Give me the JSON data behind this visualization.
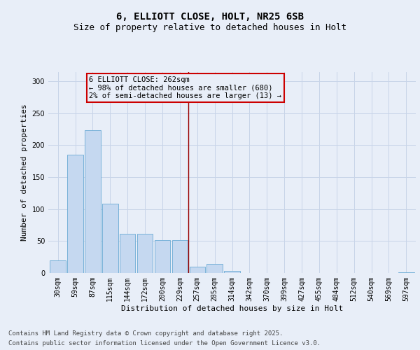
{
  "title1": "6, ELLIOTT CLOSE, HOLT, NR25 6SB",
  "title2": "Size of property relative to detached houses in Holt",
  "xlabel": "Distribution of detached houses by size in Holt",
  "ylabel": "Number of detached properties",
  "bar_labels": [
    "30sqm",
    "59sqm",
    "87sqm",
    "115sqm",
    "144sqm",
    "172sqm",
    "200sqm",
    "229sqm",
    "257sqm",
    "285sqm",
    "314sqm",
    "342sqm",
    "370sqm",
    "399sqm",
    "427sqm",
    "455sqm",
    "484sqm",
    "512sqm",
    "540sqm",
    "569sqm",
    "597sqm"
  ],
  "bar_values": [
    20,
    185,
    224,
    109,
    61,
    61,
    51,
    51,
    10,
    14,
    3,
    0,
    0,
    0,
    0,
    0,
    0,
    0,
    0,
    0,
    1
  ],
  "bar_color": "#c5d8f0",
  "bar_edge_color": "#6aaad4",
  "grid_color": "#c8d4e8",
  "background_color": "#e8eef8",
  "vline_x_index": 8,
  "vline_color": "#990000",
  "annotation_title": "6 ELLIOTT CLOSE: 262sqm",
  "annotation_line1": "← 98% of detached houses are smaller (680)",
  "annotation_line2": "2% of semi-detached houses are larger (13) →",
  "annotation_box_color": "#cc0000",
  "ylim": [
    0,
    315
  ],
  "yticks": [
    0,
    50,
    100,
    150,
    200,
    250,
    300
  ],
  "footer_line1": "Contains HM Land Registry data © Crown copyright and database right 2025.",
  "footer_line2": "Contains public sector information licensed under the Open Government Licence v3.0.",
  "title_fontsize": 10,
  "subtitle_fontsize": 9,
  "axis_label_fontsize": 8,
  "tick_fontsize": 7,
  "annotation_fontsize": 7.5,
  "footer_fontsize": 6.5
}
